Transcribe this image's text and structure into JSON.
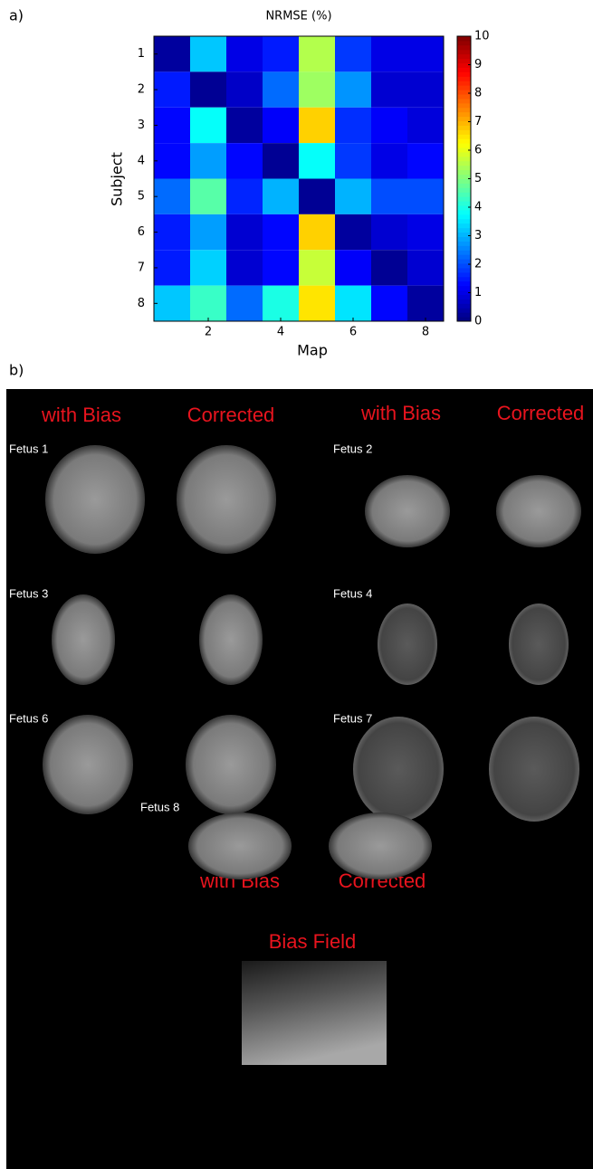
{
  "chart_data": {
    "type": "heatmap",
    "title": "NRMSE (%)",
    "x_label": "Map",
    "y_label": "Subject",
    "x": [
      1,
      2,
      3,
      4,
      5,
      6,
      7,
      8
    ],
    "y": [
      1,
      2,
      3,
      4,
      5,
      6,
      7,
      8
    ],
    "values": [
      [
        0.3,
        3.2,
        1.0,
        1.5,
        5.5,
        1.8,
        1.0,
        1.0
      ],
      [
        1.5,
        0.2,
        0.7,
        2.3,
        5.3,
        2.7,
        0.8,
        0.8
      ],
      [
        1.3,
        3.8,
        0.3,
        1.2,
        6.7,
        1.7,
        1.2,
        0.9
      ],
      [
        1.3,
        2.8,
        1.3,
        0.2,
        3.8,
        1.8,
        1.0,
        1.3
      ],
      [
        2.3,
        4.6,
        1.6,
        3.0,
        0.2,
        3.0,
        2.0,
        2.0
      ],
      [
        1.5,
        2.8,
        0.8,
        1.3,
        6.7,
        0.3,
        0.8,
        1.0
      ],
      [
        1.5,
        3.3,
        0.8,
        1.3,
        5.7,
        1.2,
        0.2,
        0.8
      ],
      [
        3.2,
        4.3,
        2.3,
        4.0,
        6.5,
        3.5,
        1.3,
        0.3
      ]
    ],
    "xlim": [
      0.5,
      8.5
    ],
    "ylim": [
      0.5,
      8.5
    ],
    "y_reversed": true,
    "xticks": [
      2,
      4,
      6,
      8
    ],
    "yticks": [
      1,
      2,
      3,
      4,
      5,
      6,
      7,
      8
    ],
    "colormap": "jet",
    "clim": [
      0,
      10
    ],
    "cticks": [
      0,
      1,
      2,
      3,
      4,
      5,
      6,
      7,
      8,
      9,
      10
    ]
  },
  "panel_labels": [
    "a)",
    "b)"
  ],
  "panel_b": {
    "top_headers": [
      "with Bias",
      "Corrected",
      "with Bias",
      "Corrected"
    ],
    "fetuses": [
      "Fetus 1",
      "Fetus 2",
      "Fetus 3",
      "Fetus 4",
      "Fetus 6",
      "Fetus 7",
      "Fetus 8"
    ],
    "fetus8_headers": [
      "with Bias",
      "Corrected"
    ],
    "bias_field": "Bias Field"
  }
}
